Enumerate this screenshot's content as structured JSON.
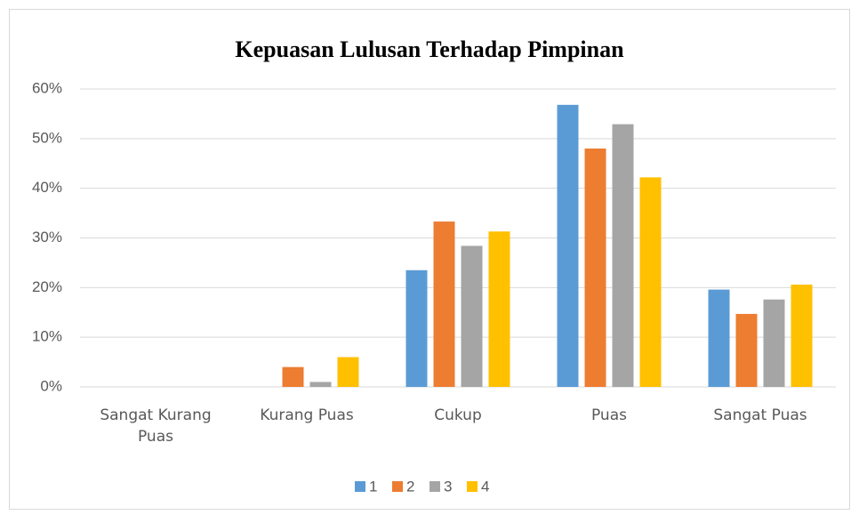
{
  "chart_data": {
    "type": "bar",
    "title": "Kepuasan Lulusan Terhadap Pimpinan",
    "categories": [
      "Sangat Kurang Puas",
      "Kurang Puas",
      "Cukup",
      "Puas",
      "Sangat Puas"
    ],
    "series": [
      {
        "name": "1",
        "color": "#5b9bd5",
        "values": [
          0,
          0,
          23.5,
          56.8,
          19.6
        ]
      },
      {
        "name": "2",
        "color": "#ed7d31",
        "values": [
          0,
          4,
          33.3,
          48,
          14.7
        ]
      },
      {
        "name": "3",
        "color": "#a5a5a5",
        "values": [
          0,
          1,
          28.4,
          52.9,
          17.6
        ]
      },
      {
        "name": "4",
        "color": "#ffc000",
        "values": [
          0,
          6,
          31.3,
          42.2,
          20.6
        ]
      }
    ],
    "ylim": [
      0,
      60
    ],
    "yticks": [
      {
        "value": 0,
        "label": "0%"
      },
      {
        "value": 10,
        "label": "10%"
      },
      {
        "value": 20,
        "label": "20%"
      },
      {
        "value": 30,
        "label": "30%"
      },
      {
        "value": 40,
        "label": "40%"
      },
      {
        "value": 50,
        "label": "50%"
      },
      {
        "value": 60,
        "label": "60%"
      }
    ],
    "grid": true,
    "legend": "bottom"
  }
}
